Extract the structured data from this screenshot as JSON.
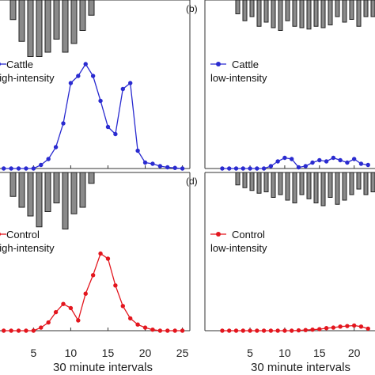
{
  "figure": {
    "xlabel_left": "30 minute intervals",
    "xlabel_right": "30 minute intervals"
  },
  "chart_data": [
    {
      "type": "line",
      "panel_label": "",
      "legend": [
        "Cattle",
        "high-intensity"
      ],
      "color": "#2a2bd0",
      "x": [
        1,
        2,
        3,
        4,
        5,
        6,
        7,
        8,
        9,
        10,
        11,
        12,
        13,
        14,
        15,
        16,
        17,
        18,
        19,
        20,
        21,
        22,
        23,
        24,
        25
      ],
      "values": [
        0,
        0,
        0,
        0,
        0,
        0.03,
        0.08,
        0.18,
        0.38,
        0.72,
        0.78,
        0.88,
        0.78,
        0.57,
        0.35,
        0.29,
        0.67,
        0.72,
        0.15,
        0.05,
        0.04,
        0.02,
        0.01,
        0.005,
        0
      ],
      "ylim": [
        0,
        1
      ],
      "xlim": [
        0.5,
        26
      ],
      "xticks": [
        5,
        10,
        15,
        20,
        25
      ],
      "bars": [
        0.45,
        0.95,
        1.3,
        1.3,
        1.2,
        0.9,
        1.2,
        1.0,
        0.7,
        0.35
      ],
      "grid": false
    },
    {
      "type": "line",
      "panel_label": "(b)",
      "legend": [
        "Cattle",
        "low-intensity"
      ],
      "color": "#2a2bd0",
      "x": [
        1,
        2,
        3,
        4,
        5,
        6,
        7,
        8,
        9,
        10,
        11,
        12,
        13,
        14,
        15,
        16,
        17,
        18,
        19,
        20,
        21,
        22
      ],
      "values": [
        0,
        0,
        0,
        0,
        0,
        0,
        0,
        0.02,
        0.06,
        0.09,
        0.08,
        0.01,
        0.02,
        0.05,
        0.07,
        0.06,
        0.09,
        0.07,
        0.05,
        0.08,
        0.04,
        0.03
      ],
      "ylim": [
        0,
        1
      ],
      "xlim": [
        -1.5,
        23
      ],
      "xticks": [
        5,
        10,
        15,
        20
      ],
      "bars": [
        0.5,
        0.75,
        0.6,
        0.95,
        0.8,
        1.0,
        1.1,
        0.75,
        0.95,
        1.0,
        1.05,
        0.95,
        1.0,
        0.9,
        0.6,
        0.8,
        0.7,
        0.95,
        0.6,
        0.6
      ],
      "grid": false
    },
    {
      "type": "line",
      "panel_label": "",
      "legend": [
        "Control",
        "high-intensity"
      ],
      "color": "#e3161e",
      "x": [
        1,
        2,
        3,
        4,
        5,
        6,
        7,
        8,
        9,
        10,
        11,
        12,
        13,
        14,
        15,
        16,
        17,
        18,
        19,
        20,
        21,
        22,
        23,
        24,
        25
      ],
      "values": [
        0,
        0,
        0,
        0,
        0,
        0.03,
        0.08,
        0.18,
        0.26,
        0.22,
        0.1,
        0.36,
        0.54,
        0.75,
        0.7,
        0.44,
        0.24,
        0.12,
        0.06,
        0.03,
        0.01,
        0,
        0,
        0,
        0
      ],
      "ylim": [
        0,
        1
      ],
      "xlim": [
        0.5,
        26
      ],
      "xticks": [
        5,
        10,
        15,
        20,
        25
      ],
      "bars": [
        0.55,
        0.8,
        1.0,
        1.25,
        0.9,
        0.7,
        1.3,
        0.95,
        0.8,
        0.25
      ],
      "grid": false
    },
    {
      "type": "line",
      "panel_label": "(d)",
      "legend": [
        "Control",
        "low-intensity"
      ],
      "color": "#e3161e",
      "x": [
        1,
        2,
        3,
        4,
        5,
        6,
        7,
        8,
        9,
        10,
        11,
        12,
        13,
        14,
        15,
        16,
        17,
        18,
        19,
        20,
        21,
        22
      ],
      "values": [
        0,
        0,
        0,
        0,
        0,
        0,
        0,
        0,
        0,
        0,
        0,
        0.003,
        0.006,
        0.01,
        0.015,
        0.025,
        0.03,
        0.04,
        0.045,
        0.05,
        0.04,
        0.02
      ],
      "ylim": [
        0,
        1
      ],
      "xlim": [
        -1.5,
        23
      ],
      "xticks": [
        5,
        10,
        15,
        20
      ],
      "bars": [
        0.45,
        0.55,
        0.65,
        0.75,
        0.7,
        0.9,
        0.8,
        1.0,
        1.1,
        0.8,
        0.95,
        1.1,
        1.2,
        0.9,
        1.15,
        1.0,
        0.8,
        0.6,
        0.8,
        0.7
      ],
      "grid": false
    }
  ]
}
